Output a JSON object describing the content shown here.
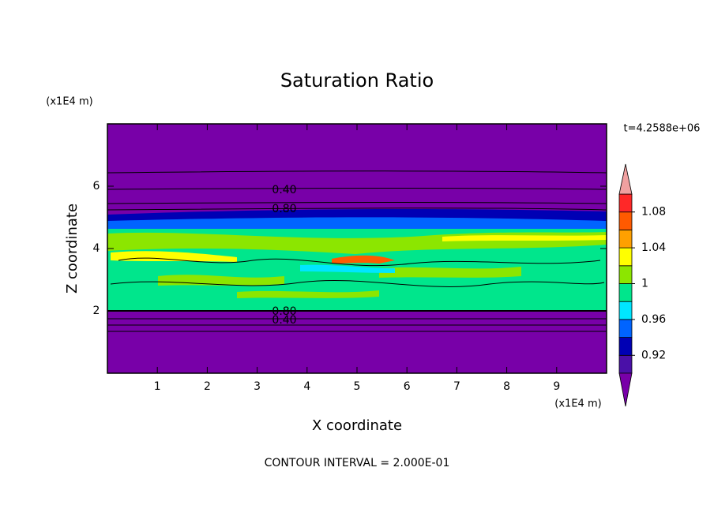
{
  "chart_data": {
    "type": "contour",
    "title": "Saturation Ratio",
    "x_label": "X coordinate",
    "y_label": "Z coordinate",
    "x_unit": "(x1E4 m)",
    "y_unit": "(x1E4 m)",
    "time_label": "t=4.2588e+06",
    "footer": "CONTOUR INTERVAL = 2.000E-01",
    "xlim": [
      0,
      10
    ],
    "ylim": [
      0,
      8
    ],
    "xticks": [
      1,
      2,
      3,
      4,
      5,
      6,
      7,
      8,
      9
    ],
    "yticks": [
      2,
      4,
      6
    ],
    "contour_labels": [
      {
        "value": 0.4,
        "label": "0.40"
      },
      {
        "value": 0.8,
        "label": "0.80"
      },
      {
        "value": 0.8,
        "label": "0.80"
      },
      {
        "value": 0.4,
        "label": "0.40"
      }
    ],
    "colorbar": {
      "levels": [
        0.9,
        0.92,
        0.94,
        0.96,
        0.98,
        1,
        1.02,
        1.04,
        1.06,
        1.08,
        1.1
      ],
      "colors": [
        "#4a10a8",
        "#0000b4",
        "#0064ff",
        "#00e6ff",
        "#00e68c",
        "#8ce600",
        "#ffff00",
        "#ffa000",
        "#ff5a00",
        "#ff2828"
      ],
      "under_color": "#7800a8",
      "over_color": "#f0a0a0",
      "ticks": [
        0.92,
        0.96,
        1,
        1.04,
        1.08
      ]
    }
  }
}
